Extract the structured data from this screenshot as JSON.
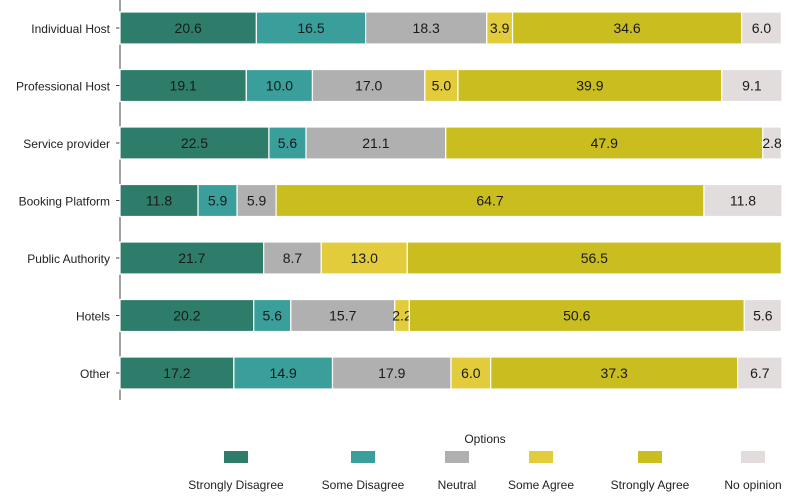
{
  "chart_data": {
    "type": "bar",
    "orientation": "horizontal",
    "stacked": true,
    "categories": [
      "Individual Host",
      "Professional Host",
      "Service provider",
      "Booking Platform",
      "Public Authority",
      "Hotels",
      "Other"
    ],
    "series": [
      {
        "name": "Strongly Disagree",
        "color": "#2e7d6b",
        "values": [
          20.6,
          19.1,
          22.5,
          11.8,
          21.7,
          20.2,
          17.2
        ]
      },
      {
        "name": "Some Disagree",
        "color": "#3a9e9b",
        "values": [
          16.5,
          10.0,
          5.6,
          5.9,
          0,
          5.6,
          14.9
        ]
      },
      {
        "name": "Neutral",
        "color": "#b0b0b0",
        "values": [
          18.3,
          17.0,
          21.1,
          5.9,
          8.7,
          15.7,
          17.9
        ]
      },
      {
        "name": "Some Agree",
        "color": "#e2cc3c",
        "values": [
          3.9,
          5.0,
          0,
          0,
          13.0,
          2.2,
          6.0
        ]
      },
      {
        "name": "Strongly Agree",
        "color": "#c9bd1f",
        "values": [
          34.6,
          39.9,
          47.9,
          64.7,
          56.5,
          50.6,
          37.3
        ]
      },
      {
        "name": "No opinion",
        "color": "#e2dcdc",
        "values": [
          6.0,
          9.1,
          2.8,
          11.8,
          0,
          5.6,
          6.7
        ]
      }
    ],
    "xlim": [
      0,
      100
    ],
    "legend_title": "Options",
    "legend_position": "bottom",
    "grid": false
  }
}
